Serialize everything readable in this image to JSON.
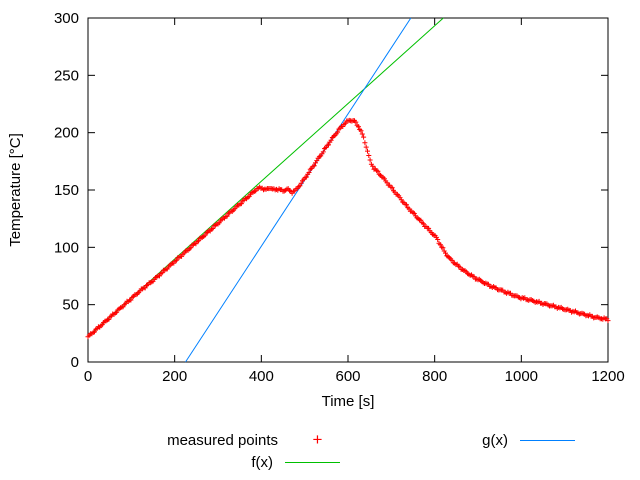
{
  "figure": {
    "background": "#ffffff",
    "text_color": "#000000",
    "border_color": "#000000"
  },
  "chart_data": {
    "type": "scatter",
    "title": "",
    "xlabel": "Time [s]",
    "ylabel": "Temperature [°C]",
    "xlim": [
      0,
      1200
    ],
    "ylim": [
      0,
      300
    ],
    "xticks": [
      0,
      200,
      400,
      600,
      800,
      1000,
      1200
    ],
    "yticks": [
      0,
      50,
      100,
      150,
      200,
      250,
      300
    ],
    "grid": false,
    "legend_position": "below-center",
    "series": [
      {
        "id": "measured",
        "name": "measured points",
        "type": "scatter",
        "marker": "plus",
        "marker_glyph": "+",
        "color": "#ff0000",
        "sample_step_s": 3,
        "noise_amplitude": 1.0,
        "points": [
          [
            0,
            22
          ],
          [
            30,
            32
          ],
          [
            60,
            42
          ],
          [
            90,
            52
          ],
          [
            120,
            62
          ],
          [
            150,
            71
          ],
          [
            180,
            81
          ],
          [
            210,
            91
          ],
          [
            240,
            101
          ],
          [
            270,
            111
          ],
          [
            300,
            121
          ],
          [
            330,
            131
          ],
          [
            360,
            141
          ],
          [
            390,
            151
          ],
          [
            400,
            152
          ],
          [
            410,
            150
          ],
          [
            420,
            152
          ],
          [
            430,
            150
          ],
          [
            440,
            151
          ],
          [
            450,
            149
          ],
          [
            460,
            151
          ],
          [
            470,
            148
          ],
          [
            480,
            150
          ],
          [
            500,
            160
          ],
          [
            520,
            171
          ],
          [
            540,
            182
          ],
          [
            560,
            193
          ],
          [
            580,
            203
          ],
          [
            595,
            209
          ],
          [
            605,
            211
          ],
          [
            615,
            210
          ],
          [
            625,
            205
          ],
          [
            635,
            197
          ],
          [
            645,
            184
          ],
          [
            652,
            174
          ],
          [
            660,
            169
          ],
          [
            668,
            166
          ],
          [
            680,
            161
          ],
          [
            700,
            152
          ],
          [
            720,
            143
          ],
          [
            740,
            134
          ],
          [
            760,
            126
          ],
          [
            780,
            118
          ],
          [
            795,
            112
          ],
          [
            805,
            108
          ],
          [
            815,
            101
          ],
          [
            825,
            95
          ],
          [
            835,
            90
          ],
          [
            850,
            85
          ],
          [
            870,
            79
          ],
          [
            890,
            74
          ],
          [
            910,
            70
          ],
          [
            930,
            66
          ],
          [
            950,
            63
          ],
          [
            970,
            60
          ],
          [
            990,
            57
          ],
          [
            1010,
            55
          ],
          [
            1030,
            53
          ],
          [
            1050,
            51
          ],
          [
            1070,
            49
          ],
          [
            1090,
            47
          ],
          [
            1110,
            45
          ],
          [
            1130,
            43
          ],
          [
            1150,
            41
          ],
          [
            1170,
            39
          ],
          [
            1200,
            37
          ]
        ]
      },
      {
        "id": "f",
        "name": "f(x)",
        "type": "line",
        "color": "#00c000",
        "endpoints": [
          [
            0,
            22
          ],
          [
            820,
            300
          ]
        ]
      },
      {
        "id": "g",
        "name": "g(x)",
        "type": "line",
        "color": "#0080ff",
        "endpoints": [
          [
            225,
            0
          ],
          [
            745,
            300
          ]
        ]
      }
    ]
  }
}
